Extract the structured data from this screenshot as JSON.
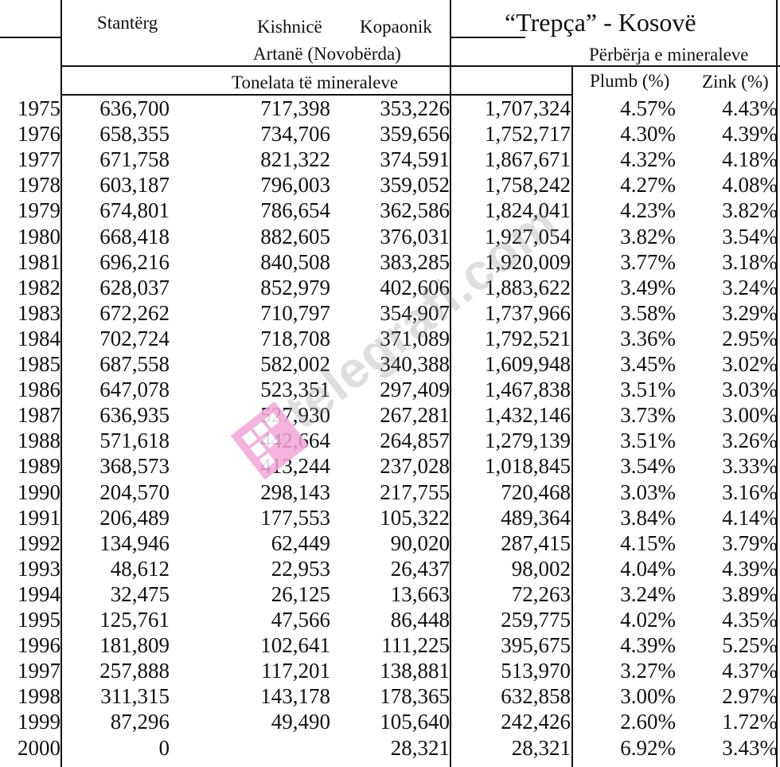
{
  "headers": {
    "stanterg": "Stantërg",
    "kishnice": "Kishnicë",
    "kopaonik": "Kopaonik",
    "artane": "Artanë (Novobërda)",
    "tonelata": "Tonelata të mineraleve",
    "trepca": "“Trepça” - Kosovë",
    "perberja": "Përbërja e mineraleve",
    "plumb": "Plumb (%)",
    "zink": "Zink (%)"
  },
  "watermark": {
    "text": "telegrafi.com",
    "color": "#f2a6d6"
  },
  "rows": [
    {
      "year": "1975",
      "stanterg": "636,700",
      "kishnice": "717,398",
      "kopaonik": "353,226",
      "trepca": "1,707,324",
      "plumb": "4.57%",
      "zink": "4.43%"
    },
    {
      "year": "1976",
      "stanterg": "658,355",
      "kishnice": "734,706",
      "kopaonik": "359,656",
      "trepca": "1,752,717",
      "plumb": "4.30%",
      "zink": "4.39%"
    },
    {
      "year": "1977",
      "stanterg": "671,758",
      "kishnice": "821,322",
      "kopaonik": "374,591",
      "trepca": "1,867,671",
      "plumb": "4.32%",
      "zink": "4.18%"
    },
    {
      "year": "1978",
      "stanterg": "603,187",
      "kishnice": "796,003",
      "kopaonik": "359,052",
      "trepca": "1,758,242",
      "plumb": "4.27%",
      "zink": "4.08%"
    },
    {
      "year": "1979",
      "stanterg": "674,801",
      "kishnice": "786,654",
      "kopaonik": "362,586",
      "trepca": "1,824,041",
      "plumb": "4.23%",
      "zink": "3.82%"
    },
    {
      "year": "1980",
      "stanterg": "668,418",
      "kishnice": "882,605",
      "kopaonik": "376,031",
      "trepca": "1,927,054",
      "plumb": "3.82%",
      "zink": "3.54%"
    },
    {
      "year": "1981",
      "stanterg": "696,216",
      "kishnice": "840,508",
      "kopaonik": "383,285",
      "trepca": "1,920,009",
      "plumb": "3.77%",
      "zink": "3.18%"
    },
    {
      "year": "1982",
      "stanterg": "628,037",
      "kishnice": "852,979",
      "kopaonik": "402,606",
      "trepca": "1,883,622",
      "plumb": "3.49%",
      "zink": "3.24%"
    },
    {
      "year": "1983",
      "stanterg": "672,262",
      "kishnice": "710,797",
      "kopaonik": "354,907",
      "trepca": "1,737,966",
      "plumb": "3.58%",
      "zink": "3.29%"
    },
    {
      "year": "1984",
      "stanterg": "702,724",
      "kishnice": "718,708",
      "kopaonik": "371,089",
      "trepca": "1,792,521",
      "plumb": "3.36%",
      "zink": "2.95%"
    },
    {
      "year": "1985",
      "stanterg": "687,558",
      "kishnice": "582,002",
      "kopaonik": "340,388",
      "trepca": "1,609,948",
      "plumb": "3.45%",
      "zink": "3.02%"
    },
    {
      "year": "1986",
      "stanterg": "647,078",
      "kishnice": "523,351",
      "kopaonik": "297,409",
      "trepca": "1,467,838",
      "plumb": "3.51%",
      "zink": "3.03%"
    },
    {
      "year": "1987",
      "stanterg": "636,935",
      "kishnice": "527,930",
      "kopaonik": "267,281",
      "trepca": "1,432,146",
      "plumb": "3.73%",
      "zink": "3.00%"
    },
    {
      "year": "1988",
      "stanterg": "571,618",
      "kishnice": "442,664",
      "kopaonik": "264,857",
      "trepca": "1,279,139",
      "plumb": "3.51%",
      "zink": "3.26%"
    },
    {
      "year": "1989",
      "stanterg": "368,573",
      "kishnice": "413,244",
      "kopaonik": "237,028",
      "trepca": "1,018,845",
      "plumb": "3.54%",
      "zink": "3.33%"
    },
    {
      "year": "1990",
      "stanterg": "204,570",
      "kishnice": "298,143",
      "kopaonik": "217,755",
      "trepca": "720,468",
      "plumb": "3.03%",
      "zink": "3.16%"
    },
    {
      "year": "1991",
      "stanterg": "206,489",
      "kishnice": "177,553",
      "kopaonik": "105,322",
      "trepca": "489,364",
      "plumb": "3.84%",
      "zink": "4.14%"
    },
    {
      "year": "1992",
      "stanterg": "134,946",
      "kishnice": "62,449",
      "kopaonik": "90,020",
      "trepca": "287,415",
      "plumb": "4.15%",
      "zink": "3.79%"
    },
    {
      "year": "1993",
      "stanterg": "48,612",
      "kishnice": "22,953",
      "kopaonik": "26,437",
      "trepca": "98,002",
      "plumb": "4.04%",
      "zink": "4.39%"
    },
    {
      "year": "1994",
      "stanterg": "32,475",
      "kishnice": "26,125",
      "kopaonik": "13,663",
      "trepca": "72,263",
      "plumb": "3.24%",
      "zink": "3.89%"
    },
    {
      "year": "1995",
      "stanterg": "125,761",
      "kishnice": "47,566",
      "kopaonik": "86,448",
      "trepca": "259,775",
      "plumb": "4.02%",
      "zink": "4.35%"
    },
    {
      "year": "1996",
      "stanterg": "181,809",
      "kishnice": "102,641",
      "kopaonik": "111,225",
      "trepca": "395,675",
      "plumb": "4.39%",
      "zink": "5.25%"
    },
    {
      "year": "1997",
      "stanterg": "257,888",
      "kishnice": "117,201",
      "kopaonik": "138,881",
      "trepca": "513,970",
      "plumb": "3.27%",
      "zink": "4.37%"
    },
    {
      "year": "1998",
      "stanterg": "311,315",
      "kishnice": "143,178",
      "kopaonik": "178,365",
      "trepca": "632,858",
      "plumb": "3.00%",
      "zink": "2.97%"
    },
    {
      "year": "1999",
      "stanterg": "87,296",
      "kishnice": "49,490",
      "kopaonik": "105,640",
      "trepca": "242,426",
      "plumb": "2.60%",
      "zink": "1.72%"
    },
    {
      "year": "2000",
      "stanterg": "0",
      "kishnice": "",
      "kopaonik": "28,321",
      "trepca": "28,321",
      "plumb": "6.92%",
      "zink": "3.43%"
    }
  ]
}
